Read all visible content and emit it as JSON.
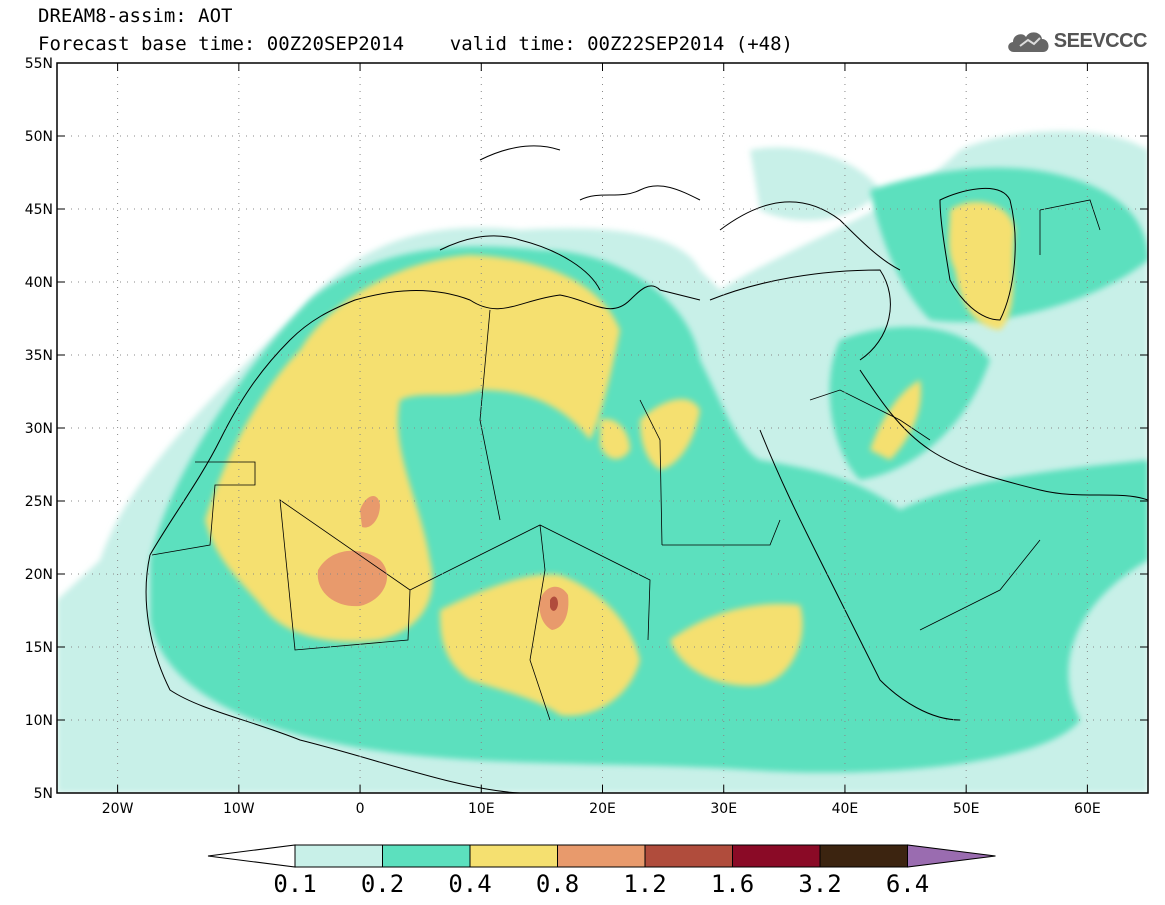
{
  "header": {
    "title_line1": "DREAM8-assim: AOT",
    "title_line2": "Forecast base time: 00Z20SEP2014    valid time: 00Z22SEP2014 (+48)",
    "logo_text": "SEEVCCC",
    "logo_icon": "cloud-icon"
  },
  "map": {
    "lon_range": [
      -25,
      65
    ],
    "lat_range": [
      5,
      55
    ],
    "lon_ticks": [
      {
        "value": -20,
        "label": "20W"
      },
      {
        "value": -10,
        "label": "10W"
      },
      {
        "value": 0,
        "label": "0"
      },
      {
        "value": 10,
        "label": "10E"
      },
      {
        "value": 20,
        "label": "20E"
      },
      {
        "value": 30,
        "label": "30E"
      },
      {
        "value": 40,
        "label": "40E"
      },
      {
        "value": 50,
        "label": "50E"
      },
      {
        "value": 60,
        "label": "60E"
      }
    ],
    "lat_ticks": [
      {
        "value": 55,
        "label": "55N"
      },
      {
        "value": 50,
        "label": "50N"
      },
      {
        "value": 45,
        "label": "45N"
      },
      {
        "value": 40,
        "label": "40N"
      },
      {
        "value": 35,
        "label": "35N"
      },
      {
        "value": 30,
        "label": "30N"
      },
      {
        "value": 25,
        "label": "25N"
      },
      {
        "value": 20,
        "label": "20N"
      },
      {
        "value": 15,
        "label": "15N"
      },
      {
        "value": 10,
        "label": "10N"
      },
      {
        "value": 5,
        "label": "5N"
      }
    ],
    "grid": "dotted"
  },
  "colorbar": {
    "colors": [
      "#ffffff",
      "#c8f0e8",
      "#5ce0be",
      "#f5e070",
      "#e89a6c",
      "#b04c3c",
      "#8a0a26",
      "#3c2410",
      "#9a6cb0"
    ],
    "labels": [
      "0.1",
      "0.2",
      "0.4",
      "0.8",
      "1.2",
      "1.6",
      "3.2",
      "6.4"
    ]
  }
}
